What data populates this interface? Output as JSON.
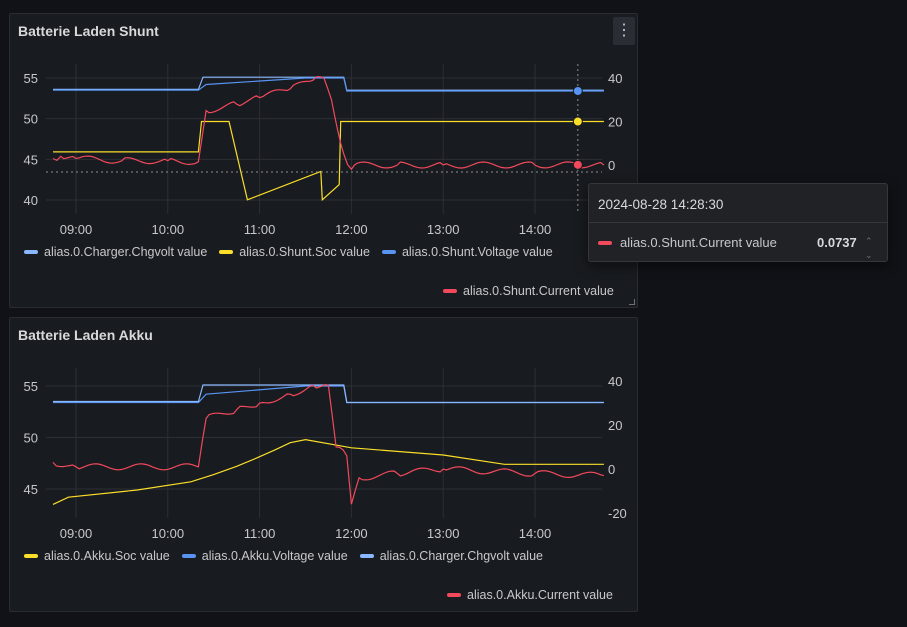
{
  "panels": [
    {
      "title": "Batterie Laden Shunt",
      "legend_rows": [
        [
          {
            "label": "alias.0.Charger.Chgvolt value",
            "color": "#8ab8ff"
          },
          {
            "label": "alias.0.Shunt.Soc value",
            "color": "#fade2a"
          },
          {
            "label": "alias.0.Shunt.Voltage value",
            "color": "#5794f2"
          }
        ],
        [
          {
            "label": "alias.0.Shunt.Current value",
            "color": "#f2495c"
          }
        ]
      ]
    },
    {
      "title": "Batterie Laden Akku",
      "legend_rows": [
        [
          {
            "label": "alias.0.Akku.Soc value",
            "color": "#fade2a"
          },
          {
            "label": "alias.0.Akku.Voltage value",
            "color": "#5794f2"
          },
          {
            "label": "alias.0.Charger.Chgvolt value",
            "color": "#8ab8ff"
          }
        ],
        [
          {
            "label": "alias.0.Akku.Current value",
            "color": "#f2495c"
          }
        ]
      ]
    }
  ],
  "tooltip": {
    "time": "2024-08-28 14:28:30",
    "series": "alias.0.Shunt.Current value",
    "value": "0.0737",
    "color": "#f2495c"
  },
  "chart_data": [
    {
      "type": "line",
      "title": "Batterie Laden Shunt",
      "x_ticks": [
        "09:00",
        "10:00",
        "11:00",
        "12:00",
        "13:00",
        "14:00"
      ],
      "xlim": [
        "08:45",
        "14:45"
      ],
      "left_axis": {
        "ticks": [
          40,
          45,
          50,
          55
        ]
      },
      "right_axis": {
        "ticks": [
          0,
          20,
          40
        ]
      },
      "series": [
        {
          "name": "alias.0.Charger.Chgvolt value",
          "color": "#8ab8ff",
          "axis": "left",
          "points": [
            [
              "08:45",
              53.6
            ],
            [
              "10:20",
              53.6
            ],
            [
              "10:23",
              55.1
            ],
            [
              "11:55",
              55.1
            ],
            [
              "11:57",
              53.5
            ],
            [
              "14:45",
              53.5
            ]
          ]
        },
        {
          "name": "alias.0.Shunt.Soc value",
          "color": "#fade2a",
          "axis": "right",
          "points": [
            [
              "08:45",
              6
            ],
            [
              "10:20",
              6
            ],
            [
              "10:22",
              20
            ],
            [
              "10:40",
              20
            ],
            [
              "10:52",
              -16
            ],
            [
              "11:40",
              -3
            ],
            [
              "11:41",
              -16
            ],
            [
              "11:52",
              -9
            ],
            [
              "11:53",
              20
            ],
            [
              "14:45",
              20
            ]
          ]
        },
        {
          "name": "alias.0.Shunt.Voltage value",
          "color": "#5794f2",
          "axis": "left",
          "points": [
            [
              "08:45",
              53.5
            ],
            [
              "10:20",
              53.5
            ],
            [
              "10:25",
              54.2
            ],
            [
              "11:30",
              55.0
            ],
            [
              "11:55",
              55.0
            ],
            [
              "11:57",
              53.4
            ],
            [
              "14:45",
              53.4
            ]
          ]
        },
        {
          "name": "alias.0.Shunt.Current value",
          "color": "#f2495c",
          "axis": "right",
          "points": [
            [
              "08:45",
              3
            ],
            [
              "08:50",
              4
            ],
            [
              "09:00",
              3
            ],
            [
              "09:30",
              2
            ],
            [
              "10:00",
              2
            ],
            [
              "10:20",
              1.5
            ],
            [
              "10:25",
              25
            ],
            [
              "10:45",
              28
            ],
            [
              "11:00",
              31
            ],
            [
              "11:20",
              35
            ],
            [
              "11:35",
              39
            ],
            [
              "11:42",
              40
            ],
            [
              "11:47",
              30
            ],
            [
              "11:55",
              5
            ],
            [
              "12:00",
              -2
            ],
            [
              "12:02",
              0
            ],
            [
              "12:30",
              0
            ],
            [
              "13:00",
              0
            ],
            [
              "14:00",
              0
            ],
            [
              "14:28",
              0.0737
            ],
            [
              "14:45",
              0
            ]
          ]
        }
      ]
    },
    {
      "type": "line",
      "title": "Batterie Laden Akku",
      "x_ticks": [
        "09:00",
        "10:00",
        "11:00",
        "12:00",
        "13:00",
        "14:00"
      ],
      "xlim": [
        "08:45",
        "14:45"
      ],
      "left_axis": {
        "ticks": [
          45,
          50,
          55
        ]
      },
      "right_axis": {
        "ticks": [
          -20,
          0,
          20,
          40
        ]
      },
      "series": [
        {
          "name": "alias.0.Akku.Soc value",
          "color": "#fade2a",
          "axis": "left",
          "points": [
            [
              "08:45",
              43.5
            ],
            [
              "08:55",
              44.2
            ],
            [
              "09:40",
              44.9
            ],
            [
              "10:15",
              45.7
            ],
            [
              "10:30",
              46.4
            ],
            [
              "10:45",
              47.2
            ],
            [
              "10:58",
              48.0
            ],
            [
              "11:10",
              48.8
            ],
            [
              "11:20",
              49.5
            ],
            [
              "11:30",
              49.8
            ],
            [
              "12:00",
              49.0
            ],
            [
              "13:00",
              48.3
            ],
            [
              "13:40",
              47.4
            ],
            [
              "14:45",
              47.4
            ]
          ]
        },
        {
          "name": "alias.0.Akku.Voltage value",
          "color": "#5794f2",
          "axis": "left",
          "points": [
            [
              "08:45",
              53.4
            ],
            [
              "10:20",
              53.4
            ],
            [
              "10:25",
              54.2
            ],
            [
              "11:30",
              55.0
            ],
            [
              "11:55",
              55.0
            ],
            [
              "11:57",
              53.4
            ],
            [
              "14:45",
              53.4
            ]
          ]
        },
        {
          "name": "alias.0.Charger.Chgvolt value",
          "color": "#8ab8ff",
          "axis": "left",
          "points": [
            [
              "08:45",
              53.5
            ],
            [
              "10:20",
              53.5
            ],
            [
              "10:23",
              55.1
            ],
            [
              "11:55",
              55.1
            ],
            [
              "11:57",
              53.4
            ],
            [
              "14:45",
              53.4
            ]
          ]
        },
        {
          "name": "alias.0.Akku.Current value",
          "color": "#f2495c",
          "axis": "right",
          "points": [
            [
              "08:45",
              3
            ],
            [
              "09:00",
              1
            ],
            [
              "10:20",
              1
            ],
            [
              "10:25",
              23
            ],
            [
              "10:45",
              27
            ],
            [
              "11:00",
              30
            ],
            [
              "11:20",
              34
            ],
            [
              "11:35",
              38
            ],
            [
              "11:45",
              38
            ],
            [
              "11:50",
              10
            ],
            [
              "11:57",
              6
            ],
            [
              "12:00",
              -16
            ],
            [
              "12:05",
              -4
            ],
            [
              "12:30",
              -2
            ],
            [
              "13:00",
              0
            ],
            [
              "14:00",
              -2
            ],
            [
              "14:45",
              -3
            ]
          ]
        }
      ]
    }
  ]
}
